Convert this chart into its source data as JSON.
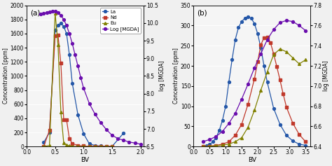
{
  "panel_a": {
    "La_x": [
      0.3,
      0.4,
      0.5,
      0.55,
      0.6,
      0.65,
      0.7,
      0.75,
      0.8,
      0.9,
      1.0,
      1.1,
      1.2,
      1.3,
      1.4,
      1.5,
      1.7
    ],
    "La_y": [
      60,
      200,
      1650,
      1720,
      1750,
      1700,
      1600,
      1300,
      900,
      450,
      180,
      40,
      15,
      8,
      3,
      3,
      190
    ],
    "Nd_x": [
      0.3,
      0.4,
      0.5,
      0.55,
      0.6,
      0.65,
      0.7,
      0.75,
      0.8,
      0.9,
      1.0,
      1.1,
      1.2,
      1.3,
      1.4,
      1.5
    ],
    "Nd_y": [
      3,
      230,
      1570,
      1580,
      1180,
      380,
      380,
      110,
      45,
      15,
      8,
      3,
      3,
      1,
      1,
      1
    ],
    "Eu_x": [
      0.3,
      0.4,
      0.5,
      0.55,
      0.6,
      0.65,
      0.7,
      0.75,
      0.8,
      0.9,
      1.0,
      1.1,
      1.2,
      1.3,
      1.4,
      1.5
    ],
    "Eu_y": [
      3,
      15,
      1890,
      1440,
      490,
      55,
      25,
      8,
      3,
      1,
      1,
      1,
      1,
      1,
      1,
      1
    ],
    "MGDA_x": [
      0.25,
      0.3,
      0.35,
      0.4,
      0.45,
      0.5,
      0.55,
      0.6,
      0.65,
      0.7,
      0.75,
      0.8,
      0.85,
      0.9,
      0.95,
      1.0,
      1.1,
      1.2,
      1.3,
      1.4,
      1.5,
      1.6,
      1.7,
      1.8,
      1.9,
      2.0
    ],
    "MGDA_y": [
      10.25,
      10.28,
      10.3,
      10.32,
      10.33,
      10.33,
      10.3,
      10.22,
      10.1,
      9.93,
      9.7,
      9.42,
      9.1,
      8.78,
      8.45,
      8.15,
      7.72,
      7.42,
      7.18,
      6.98,
      6.82,
      6.73,
      6.68,
      6.63,
      6.6,
      6.57
    ],
    "xlim": [
      0.0,
      2.05
    ],
    "ylim_left": [
      0,
      2000
    ],
    "ylim_right": [
      6.5,
      10.5
    ],
    "yticks_left": [
      0,
      200,
      400,
      600,
      800,
      1000,
      1200,
      1400,
      1600,
      1800,
      2000
    ],
    "yticks_right": [
      6.5,
      7.0,
      7.5,
      8.0,
      8.5,
      9.0,
      9.5,
      10.0,
      10.5
    ],
    "xticks": [
      0.0,
      0.5,
      1.0,
      1.5,
      2.0
    ],
    "xlabel": "BV",
    "ylabel_left": "Concentration [ppm]",
    "ylabel_right": "log [MGDA]",
    "label": "(a)"
  },
  "panel_b": {
    "La_x": [
      0.3,
      0.4,
      0.5,
      0.6,
      0.7,
      0.8,
      0.9,
      1.0,
      1.1,
      1.2,
      1.3,
      1.4,
      1.5,
      1.6,
      1.7,
      1.8,
      1.9,
      2.0,
      2.1,
      2.2,
      2.3,
      2.5,
      2.7,
      2.9,
      3.1,
      3.3,
      3.5
    ],
    "La_y": [
      0,
      2,
      5,
      12,
      22,
      40,
      65,
      100,
      160,
      215,
      265,
      295,
      310,
      318,
      322,
      318,
      305,
      280,
      245,
      200,
      160,
      95,
      55,
      28,
      14,
      6,
      3
    ],
    "Nd_x": [
      0.3,
      0.5,
      0.7,
      0.9,
      1.1,
      1.3,
      1.5,
      1.7,
      1.9,
      2.0,
      2.1,
      2.2,
      2.3,
      2.4,
      2.5,
      2.6,
      2.7,
      2.8,
      2.9,
      3.1,
      3.3,
      3.5
    ],
    "Nd_y": [
      0,
      1,
      3,
      6,
      12,
      28,
      55,
      105,
      168,
      210,
      252,
      270,
      272,
      258,
      230,
      198,
      165,
      130,
      98,
      58,
      30,
      12
    ],
    "Eu_x": [
      0.3,
      0.5,
      0.7,
      0.9,
      1.1,
      1.3,
      1.5,
      1.7,
      1.9,
      2.1,
      2.3,
      2.5,
      2.7,
      2.9,
      3.1,
      3.3,
      3.5
    ],
    "Eu_y": [
      0,
      1,
      2,
      4,
      6,
      12,
      22,
      48,
      90,
      140,
      185,
      228,
      242,
      235,
      220,
      205,
      215
    ],
    "MGDA_x": [
      0.3,
      0.5,
      0.7,
      0.9,
      1.1,
      1.3,
      1.5,
      1.7,
      1.9,
      2.1,
      2.3,
      2.5,
      2.7,
      2.9,
      3.1,
      3.3,
      3.5
    ],
    "MGDA_y": [
      6.45,
      6.47,
      6.5,
      6.55,
      6.63,
      6.73,
      6.87,
      7.02,
      7.18,
      7.32,
      7.46,
      7.56,
      7.63,
      7.65,
      7.64,
      7.6,
      7.55
    ],
    "xlim": [
      0.0,
      3.65
    ],
    "ylim_left": [
      0,
      350
    ],
    "ylim_right": [
      6.4,
      7.8
    ],
    "yticks_left": [
      0,
      50,
      100,
      150,
      200,
      250,
      300,
      350
    ],
    "yticks_right": [
      6.4,
      6.6,
      6.8,
      7.0,
      7.2,
      7.4,
      7.6,
      7.8
    ],
    "xticks": [
      0.0,
      0.5,
      1.0,
      1.5,
      2.0,
      2.5,
      3.0,
      3.5
    ],
    "xlabel": "BV",
    "ylabel_left": "Concentration [ppm]",
    "ylabel_right": "log [MGDA]",
    "label": "(b)"
  },
  "colors": {
    "La": "#2457a8",
    "Nd": "#c0392b",
    "Eu": "#808000",
    "MGDA": "#6a0dad"
  },
  "markers": {
    "La": "o",
    "Nd": "s",
    "Eu": "^",
    "MGDA": "o"
  },
  "bg_color": "#f0f0f0",
  "plot_bg": "#f5f5f5"
}
